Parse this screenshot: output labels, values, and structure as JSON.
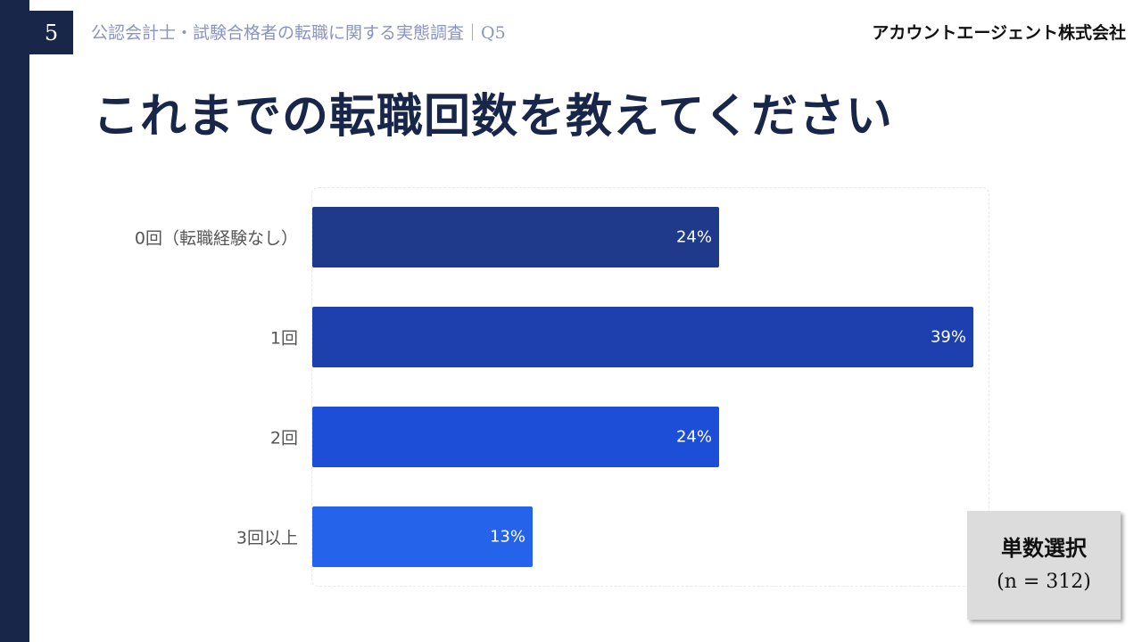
{
  "header": {
    "page_number": "5",
    "subtitle": "公認会計士・試験合格者の転職に関する実態調査｜Q5",
    "company": "アカウントエージェント株式会社"
  },
  "title": "これまでの転職回数を教えてください",
  "note": {
    "line1": "単数選択",
    "line2": "(n = 312)"
  },
  "colors": {
    "sidebar": "#18264a",
    "bar_1": "#1f3a8a",
    "bar_2": "#1e40af",
    "bar_3": "#1d4ed8",
    "bar_4": "#2563eb"
  },
  "chart_data": {
    "type": "bar",
    "orientation": "horizontal",
    "categories": [
      "0回（転職経験なし）",
      "1回",
      "2回",
      "3回以上"
    ],
    "values": [
      24,
      39,
      24,
      13
    ],
    "value_labels": [
      "24%",
      "39%",
      "24%",
      "13%"
    ],
    "unit": "%",
    "xlim": [
      0,
      40
    ],
    "grid": false
  }
}
